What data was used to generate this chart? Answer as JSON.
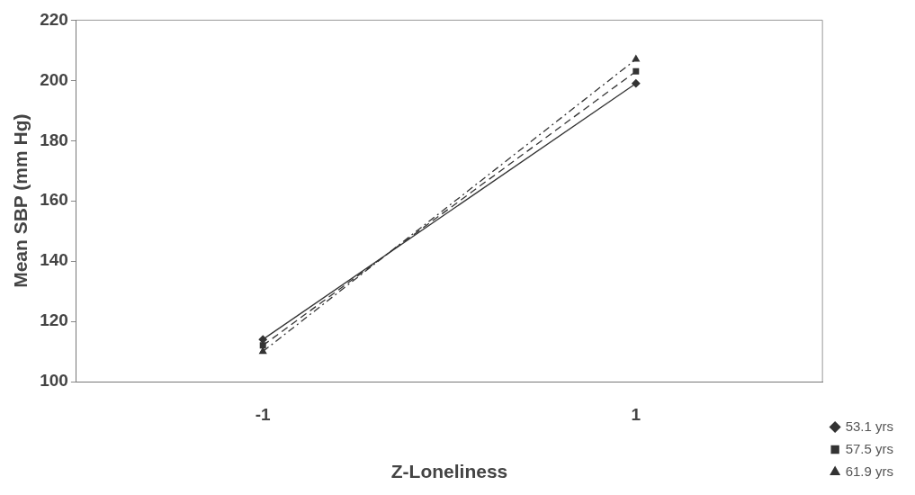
{
  "chart_data": {
    "type": "line",
    "xlabel": "Z-Loneliness",
    "ylabel": "Mean SBP (mm Hg)",
    "categories": [
      "-1",
      "1"
    ],
    "series": [
      {
        "name": "53.1 yrs",
        "color": "#333333",
        "values": [
          114,
          199
        ],
        "marker": "diamond",
        "line_style": "solid"
      },
      {
        "name": "57.5 yrs",
        "color": "#333333",
        "values": [
          112,
          203
        ],
        "marker": "square",
        "line_style": "dashed"
      },
      {
        "name": "61.9 yrs",
        "color": "#333333",
        "values": [
          110,
          207
        ],
        "marker": "triangle",
        "line_style": "dotted"
      }
    ],
    "ylim": [
      100,
      220
    ],
    "yticks": [
      100,
      120,
      140,
      160,
      180,
      200,
      220
    ],
    "grid": false,
    "legend": "bottom right"
  }
}
